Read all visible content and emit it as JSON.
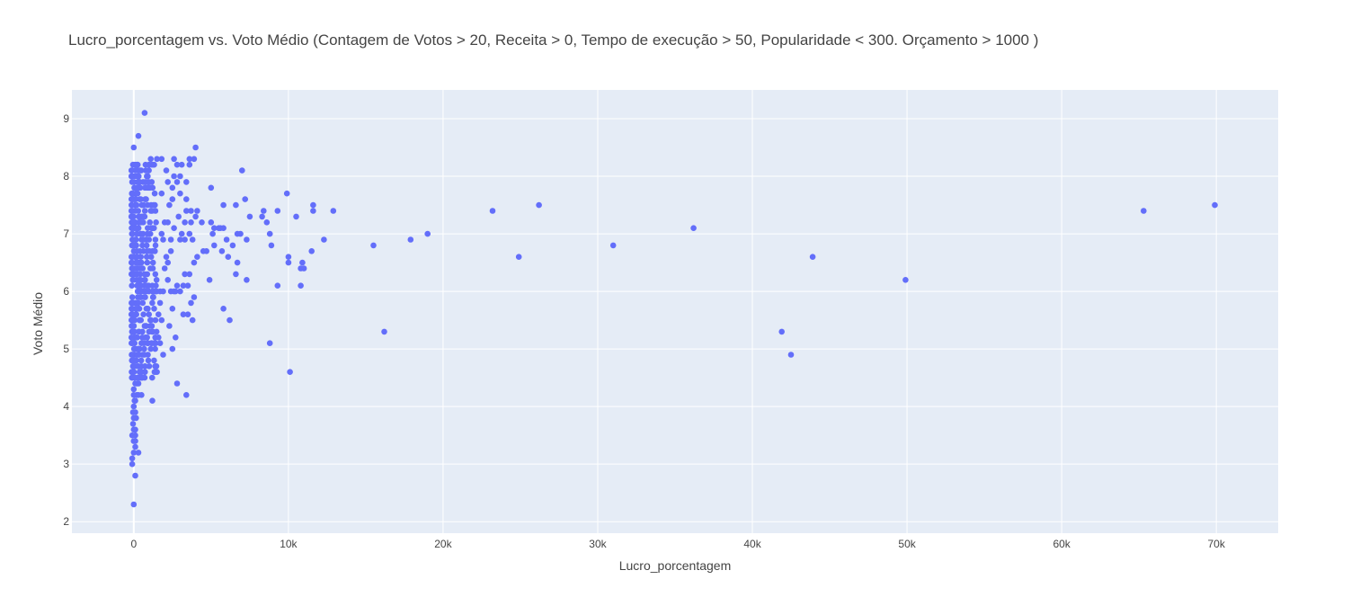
{
  "chart_data": {
    "type": "scatter",
    "title": "Lucro_porcentagem vs. Voto Médio (Contagem de Votos > 20, Receita > 0, Tempo de execução > 50, Popularidade < 300. Orçamento > 1000 )",
    "xlabel": "Lucro_porcentagem",
    "ylabel": "Voto Médio",
    "xlim": [
      -4000,
      74000
    ],
    "ylim": [
      1.8,
      9.5
    ],
    "xticks": [
      0,
      10000,
      20000,
      30000,
      40000,
      50000,
      60000,
      70000
    ],
    "xtick_labels": [
      "0",
      "10k",
      "20k",
      "30k",
      "40k",
      "50k",
      "60k",
      "70k"
    ],
    "yticks": [
      2,
      3,
      4,
      5,
      6,
      7,
      8,
      9
    ],
    "ytick_labels": [
      "2",
      "3",
      "4",
      "5",
      "6",
      "7",
      "8",
      "9"
    ],
    "grid": true,
    "marker_color": "#636efa",
    "plot_bg": "#e5ecf6",
    "points": [
      [
        700,
        9.1
      ],
      [
        0,
        8.5
      ],
      [
        300,
        8.7
      ],
      [
        4000,
        8.5
      ],
      [
        7000,
        8.1
      ],
      [
        2600,
        8.3
      ],
      [
        3600,
        8.3
      ],
      [
        3900,
        8.3
      ],
      [
        3600,
        8.2
      ],
      [
        3100,
        8.2
      ],
      [
        2800,
        8.2
      ],
      [
        1500,
        8.3
      ],
      [
        1800,
        8.3
      ],
      [
        1100,
        8.3
      ],
      [
        4400,
        7.2
      ],
      [
        5000,
        7.8
      ],
      [
        5800,
        7.5
      ],
      [
        6600,
        7.5
      ],
      [
        7200,
        7.6
      ],
      [
        7500,
        7.3
      ],
      [
        8300,
        7.3
      ],
      [
        8400,
        7.4
      ],
      [
        8600,
        7.2
      ],
      [
        9300,
        7.4
      ],
      [
        9900,
        7.7
      ],
      [
        10500,
        7.3
      ],
      [
        11600,
        7.4
      ],
      [
        11600,
        7.5
      ],
      [
        12900,
        7.4
      ],
      [
        5000,
        7.2
      ],
      [
        5200,
        7.1
      ],
      [
        5500,
        7.1
      ],
      [
        5600,
        7.1
      ],
      [
        5800,
        7.1
      ],
      [
        6400,
        6.8
      ],
      [
        6700,
        7.0
      ],
      [
        6900,
        7.0
      ],
      [
        7300,
        6.9
      ],
      [
        6000,
        6.9
      ],
      [
        6100,
        6.6
      ],
      [
        5700,
        6.7
      ],
      [
        6700,
        6.5
      ],
      [
        6600,
        6.3
      ],
      [
        7300,
        6.2
      ],
      [
        5100,
        7.0
      ],
      [
        5200,
        6.8
      ],
      [
        4500,
        6.7
      ],
      [
        4700,
        6.7
      ],
      [
        4900,
        6.2
      ],
      [
        4100,
        6.6
      ],
      [
        3900,
        6.5
      ],
      [
        3300,
        6.3
      ],
      [
        3600,
        6.3
      ],
      [
        3500,
        6.1
      ],
      [
        3900,
        5.9
      ],
      [
        3700,
        5.8
      ],
      [
        3800,
        5.5
      ],
      [
        3500,
        5.6
      ],
      [
        3200,
        5.6
      ],
      [
        2500,
        5.7
      ],
      [
        5800,
        5.7
      ],
      [
        6200,
        5.5
      ],
      [
        2300,
        5.4
      ],
      [
        2700,
        5.2
      ],
      [
        2500,
        5.0
      ],
      [
        2800,
        4.4
      ],
      [
        3400,
        4.2
      ],
      [
        1900,
        4.9
      ],
      [
        1700,
        5.1
      ],
      [
        1200,
        4.1
      ],
      [
        1000,
        4.7
      ],
      [
        8900,
        6.8
      ],
      [
        8800,
        7.0
      ],
      [
        9300,
        6.1
      ],
      [
        10000,
        6.6
      ],
      [
        10000,
        6.5
      ],
      [
        10800,
        6.4
      ],
      [
        10900,
        6.5
      ],
      [
        11000,
        6.4
      ],
      [
        10800,
        6.1
      ],
      [
        11500,
        6.7
      ],
      [
        12300,
        6.9
      ],
      [
        8800,
        5.1
      ],
      [
        10100,
        4.6
      ],
      [
        15500,
        6.8
      ],
      [
        16200,
        5.3
      ],
      [
        17900,
        6.9
      ],
      [
        19000,
        7.0
      ],
      [
        23200,
        7.4
      ],
      [
        24900,
        6.6
      ],
      [
        26200,
        7.5
      ],
      [
        31000,
        6.8
      ],
      [
        36200,
        7.1
      ],
      [
        41900,
        5.3
      ],
      [
        42500,
        4.9
      ],
      [
        43900,
        6.6
      ],
      [
        49900,
        6.2
      ],
      [
        65300,
        7.4
      ],
      [
        69900,
        7.5
      ],
      [
        0,
        2.3
      ],
      [
        100,
        2.8
      ],
      [
        -100,
        3.0
      ],
      [
        -100,
        3.1
      ],
      [
        0,
        3.2
      ],
      [
        300,
        3.2
      ],
      [
        100,
        3.3
      ],
      [
        0,
        3.4
      ],
      [
        100,
        3.4
      ],
      [
        -100,
        3.5
      ],
      [
        100,
        3.5
      ],
      [
        0,
        3.6
      ],
      [
        100,
        3.6
      ],
      [
        -50,
        3.7
      ],
      [
        0,
        3.8
      ],
      [
        150,
        3.8
      ],
      [
        -50,
        3.9
      ],
      [
        100,
        3.9
      ],
      [
        0,
        4.0
      ],
      [
        50,
        4.1
      ],
      [
        100,
        4.1
      ],
      [
        0,
        4.2
      ],
      [
        200,
        4.2
      ],
      [
        300,
        4.2
      ],
      [
        500,
        4.2
      ],
      [
        0,
        4.3
      ],
      [
        100,
        4.4
      ],
      [
        200,
        4.4
      ],
      [
        300,
        4.4
      ],
      [
        500,
        4.5
      ],
      [
        700,
        4.5
      ],
      [
        1500,
        4.6
      ],
      [
        1600,
        5.2
      ],
      [
        1400,
        5.5
      ],
      [
        1600,
        5.6
      ],
      [
        1800,
        5.5
      ],
      [
        1700,
        5.8
      ],
      [
        2000,
        6.4
      ],
      [
        2200,
        6.5
      ],
      [
        2600,
        6.0
      ],
      [
        3000,
        6.0
      ],
      [
        2800,
        6.1
      ],
      [
        3200,
        6.1
      ],
      [
        2400,
        6.7
      ],
      [
        3000,
        6.9
      ],
      [
        3300,
        6.9
      ],
      [
        3800,
        6.9
      ],
      [
        3600,
        7.0
      ],
      [
        3100,
        7.0
      ],
      [
        3300,
        7.2
      ],
      [
        3700,
        7.2
      ],
      [
        4000,
        7.3
      ],
      [
        4100,
        7.4
      ],
      [
        3400,
        7.4
      ],
      [
        3700,
        7.4
      ],
      [
        3400,
        7.6
      ],
      [
        3000,
        7.7
      ],
      [
        3400,
        7.9
      ],
      [
        2800,
        7.9
      ],
      [
        2600,
        8.0
      ],
      [
        3000,
        8.0
      ],
      [
        2500,
        7.6
      ],
      [
        2900,
        7.3
      ],
      [
        2300,
        7.5
      ],
      [
        2500,
        7.8
      ],
      [
        2200,
        7.9
      ],
      [
        2100,
        8.1
      ],
      [
        1800,
        7.7
      ],
      [
        2000,
        7.2
      ],
      [
        2100,
        6.6
      ],
      [
        1700,
        6.0
      ],
      [
        1900,
        6.0
      ],
      [
        2200,
        6.2
      ],
      [
        2400,
        6.0
      ],
      [
        2700,
        6.0
      ],
      [
        1900,
        6.9
      ],
      [
        2400,
        6.9
      ],
      [
        1800,
        7.0
      ],
      [
        2200,
        7.2
      ],
      [
        2600,
        7.1
      ]
    ]
  },
  "dense_column": {
    "x_range": [
      -150,
      1500
    ],
    "y_range": [
      4.5,
      8.2
    ],
    "y_step": 0.1
  }
}
